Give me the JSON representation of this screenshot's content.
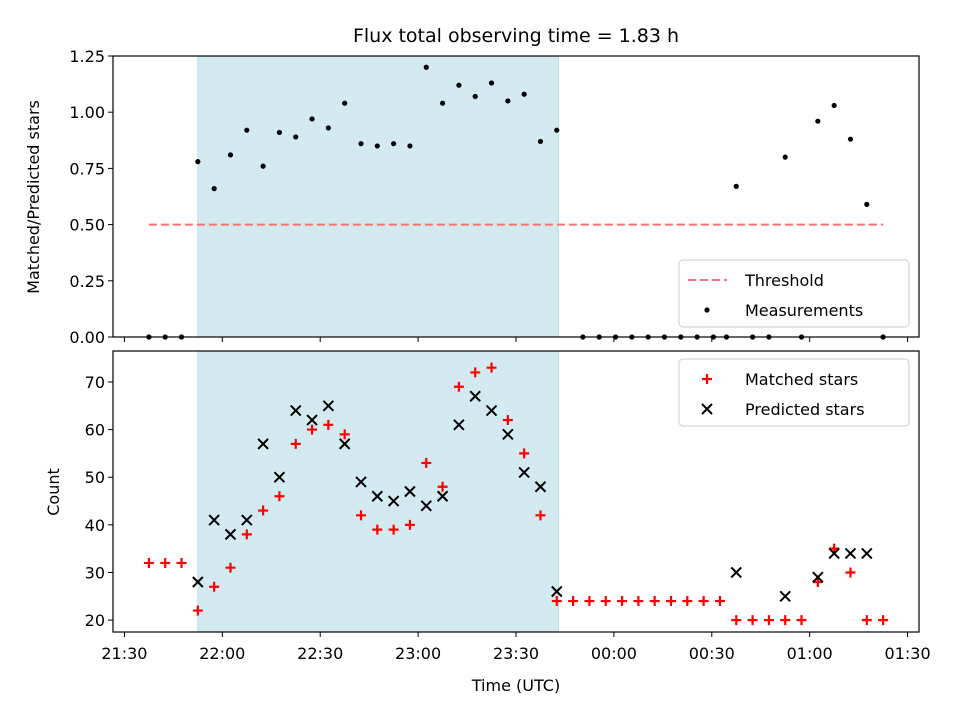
{
  "chart_data": {
    "type": "scatter",
    "title": "Flux total observing time = 1.83 h",
    "xlabel": "Time (UTC)",
    "x_ticks": [
      "21:30",
      "22:00",
      "22:30",
      "23:00",
      "23:30",
      "00:00",
      "00:30",
      "01:00",
      "01:30"
    ],
    "x_tick_minutes": [
      0,
      30,
      60,
      90,
      120,
      150,
      180,
      210,
      240
    ],
    "xlim_minutes": [
      -3.5,
      243.5
    ],
    "x_range": [
      "21:26:30",
      "01:33:30"
    ],
    "shaded_window": [
      "21:52:30",
      "23:43:00"
    ],
    "shaded_color": "#d4eaf1",
    "panels": [
      {
        "ylabel": "Matched/Predicted stars",
        "ylim": [
          0,
          1.25
        ],
        "y_ticks": [
          0.0,
          0.25,
          0.5,
          0.75,
          1.0,
          1.25
        ],
        "y_tick_labels": [
          "0.00",
          "0.25",
          "0.50",
          "0.75",
          "1.00",
          "1.25"
        ],
        "legend_position": "lower right",
        "series": [
          {
            "name": "Threshold",
            "kind": "dashed-line",
            "color": "#ff7070",
            "x": [
              "21:37:30",
              "01:22:30"
            ],
            "y": [
              0.5,
              0.5
            ]
          },
          {
            "name": "Measurements",
            "kind": "dot",
            "color": "#000000",
            "x": [
              "21:37:30",
              "21:42:30",
              "21:47:30",
              "21:52:30",
              "21:57:30",
              "22:02:30",
              "22:07:30",
              "22:12:30",
              "22:17:30",
              "22:22:30",
              "22:27:30",
              "22:32:30",
              "22:37:30",
              "22:42:30",
              "22:47:30",
              "22:52:30",
              "22:57:30",
              "23:02:30",
              "23:07:30",
              "23:12:30",
              "23:17:30",
              "23:22:30",
              "23:27:30",
              "23:32:30",
              "23:37:30",
              "23:42:30",
              "23:50:30",
              "23:55:30",
              "00:00:30",
              "00:05:30",
              "00:10:30",
              "00:15:30",
              "00:20:30",
              "00:25:30",
              "00:30:30",
              "00:34:30",
              "00:37:30",
              "00:42:30",
              "00:47:30",
              "00:52:30",
              "00:57:30",
              "01:02:30",
              "01:07:30",
              "01:12:30",
              "01:17:30",
              "01:22:30"
            ],
            "y": [
              0,
              0,
              0,
              0.78,
              0.66,
              0.81,
              0.92,
              0.76,
              0.91,
              0.89,
              0.97,
              0.93,
              1.04,
              0.86,
              0.85,
              0.86,
              0.85,
              1.2,
              1.04,
              1.12,
              1.07,
              1.13,
              1.05,
              1.08,
              0.87,
              0.92,
              0,
              0,
              0,
              0,
              0,
              0,
              0,
              0,
              0,
              0,
              0.67,
              0,
              0,
              0.8,
              0,
              0.96,
              1.03,
              0.88,
              0.59,
              0
            ]
          }
        ]
      },
      {
        "ylabel": "Count",
        "ylim": [
          17.5,
          76.5
        ],
        "y_ticks": [
          20,
          30,
          40,
          50,
          60,
          70
        ],
        "y_tick_labels": [
          "20",
          "30",
          "40",
          "50",
          "60",
          "70"
        ],
        "legend_position": "upper right",
        "series": [
          {
            "name": "Matched stars",
            "kind": "plus",
            "color": "#ff0000",
            "x": [
              "21:37:30",
              "21:42:30",
              "21:47:30",
              "21:52:30",
              "21:57:30",
              "22:02:30",
              "22:07:30",
              "22:12:30",
              "22:17:30",
              "22:22:30",
              "22:27:30",
              "22:32:30",
              "22:37:30",
              "22:42:30",
              "22:47:30",
              "22:52:30",
              "22:57:30",
              "23:02:30",
              "23:07:30",
              "23:12:30",
              "23:17:30",
              "23:22:30",
              "23:27:30",
              "23:32:30",
              "23:37:30",
              "23:42:30",
              "23:47:30",
              "23:52:30",
              "23:57:30",
              "00:02:30",
              "00:07:30",
              "00:12:30",
              "00:17:30",
              "00:22:30",
              "00:27:30",
              "00:32:30",
              "00:37:30",
              "00:42:30",
              "00:47:30",
              "00:52:30",
              "00:57:30",
              "01:02:30",
              "01:07:30",
              "01:12:30",
              "01:17:30",
              "01:22:30"
            ],
            "y": [
              32,
              32,
              32,
              22,
              27,
              31,
              38,
              43,
              46,
              57,
              60,
              61,
              59,
              42,
              39,
              39,
              40,
              53,
              48,
              69,
              72,
              73,
              62,
              55,
              42,
              24,
              24,
              24,
              24,
              24,
              24,
              24,
              24,
              24,
              24,
              24,
              20,
              20,
              20,
              20,
              20,
              28,
              35,
              30,
              20,
              20
            ]
          },
          {
            "name": "Predicted stars",
            "kind": "x",
            "color": "#000000",
            "x": [
              "21:52:30",
              "21:57:30",
              "22:02:30",
              "22:07:30",
              "22:12:30",
              "22:17:30",
              "22:22:30",
              "22:27:30",
              "22:32:30",
              "22:37:30",
              "22:42:30",
              "22:47:30",
              "22:52:30",
              "22:57:30",
              "23:02:30",
              "23:07:30",
              "23:12:30",
              "23:17:30",
              "23:22:30",
              "23:27:30",
              "23:32:30",
              "23:37:30",
              "23:42:30",
              "00:37:30",
              "00:52:30",
              "01:02:30",
              "01:07:30",
              "01:12:30",
              "01:17:30"
            ],
            "y": [
              28,
              41,
              38,
              41,
              57,
              50,
              64,
              62,
              65,
              57,
              49,
              46,
              45,
              47,
              44,
              46,
              61,
              67,
              64,
              59,
              51,
              48,
              26,
              30,
              25,
              29,
              34,
              34,
              34
            ]
          }
        ]
      }
    ]
  }
}
